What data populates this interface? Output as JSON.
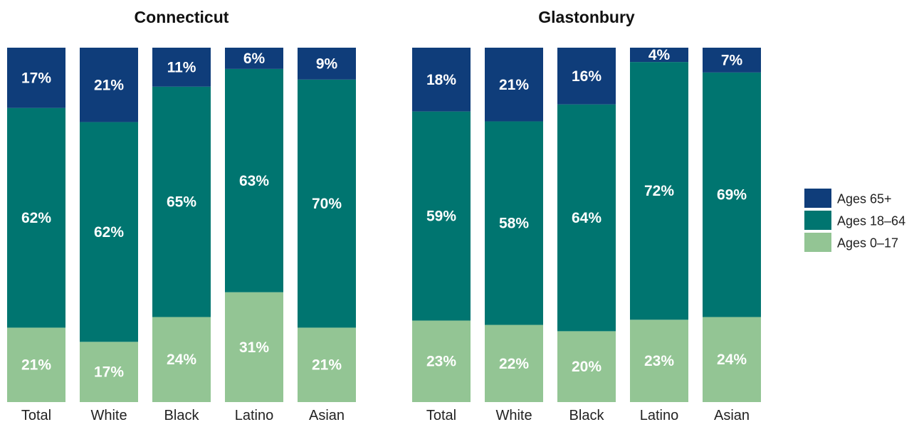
{
  "colors": {
    "Ages 65+": "#0f3d7a",
    "Ages 18–64": "#007570",
    "Ages 0–17": "#93c594"
  },
  "legend": [
    "Ages 65+",
    "Ages 18–64",
    "Ages 0–17"
  ],
  "chart_data": [
    {
      "type": "bar",
      "stacked": true,
      "title": "Connecticut",
      "categories": [
        "Total",
        "White",
        "Black",
        "Latino",
        "Asian"
      ],
      "series": [
        {
          "name": "Ages 0–17",
          "values": [
            21,
            17,
            24,
            31,
            21
          ]
        },
        {
          "name": "Ages 18–64",
          "values": [
            62,
            62,
            65,
            63,
            70
          ]
        },
        {
          "name": "Ages 65+",
          "values": [
            17,
            21,
            11,
            6,
            9
          ]
        }
      ]
    },
    {
      "type": "bar",
      "stacked": true,
      "title": "Glastonbury",
      "categories": [
        "Total",
        "White",
        "Black",
        "Latino",
        "Asian"
      ],
      "series": [
        {
          "name": "Ages 0–17",
          "values": [
            23,
            22,
            20,
            23,
            24
          ]
        },
        {
          "name": "Ages 18–64",
          "values": [
            59,
            58,
            64,
            72,
            69
          ]
        },
        {
          "name": "Ages 65+",
          "values": [
            18,
            21,
            16,
            4,
            7
          ]
        }
      ]
    }
  ]
}
